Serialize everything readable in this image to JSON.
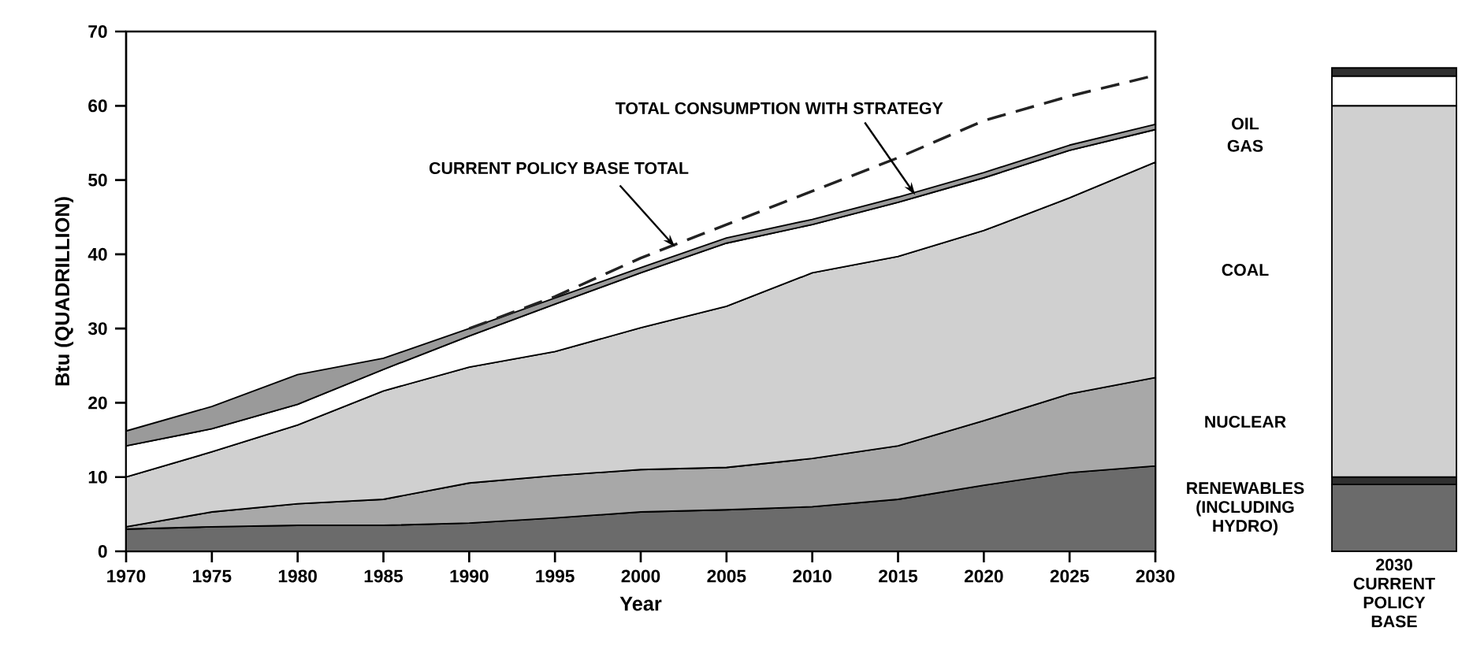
{
  "chart_data": [
    {
      "type": "area",
      "stacked": true,
      "xlabel": "Year",
      "ylabel": "Btu (QUADRILLION)",
      "x": [
        1970,
        1975,
        1980,
        1985,
        1990,
        1995,
        2000,
        2005,
        2010,
        2015,
        2020,
        2025,
        2030
      ],
      "xlim": [
        1970,
        2030
      ],
      "ylim": [
        0,
        70
      ],
      "xticks": [
        1970,
        1975,
        1980,
        1985,
        1990,
        1995,
        2000,
        2005,
        2010,
        2015,
        2020,
        2025,
        2030
      ],
      "yticks": [
        0,
        10,
        20,
        30,
        40,
        50,
        60,
        70
      ],
      "annotations": [
        {
          "text": "CURRENT POLICY BASE TOTAL",
          "x": 2002,
          "y": 41
        },
        {
          "text": "TOTAL CONSUMPTION WITH STRATEGY",
          "x": 2016,
          "y": 48
        }
      ],
      "series": [
        {
          "name": "RENEWABLES (INCLUDING HYDRO)",
          "color": "#6b6b6b",
          "values": [
            3,
            3.3,
            3.5,
            3.5,
            3.8,
            4.5,
            5.3,
            5.6,
            6,
            7,
            8.9,
            10.6,
            11.5
          ]
        },
        {
          "name": "NUCLEAR",
          "color": "#a8a8a8",
          "values": [
            0.3,
            2,
            2.9,
            3.5,
            5.4,
            5.7,
            5.7,
            5.7,
            6.5,
            7.2,
            8.7,
            10.6,
            11.9
          ]
        },
        {
          "name": "COAL",
          "color": "#d0d0d0",
          "values": [
            6.7,
            8.1,
            10.6,
            14.6,
            15.6,
            16.7,
            19.1,
            21.7,
            25,
            25.5,
            25.6,
            26.4,
            29
          ]
        },
        {
          "name": "GAS",
          "color": "#ffffff",
          "values": [
            4.2,
            3.1,
            2.8,
            2.9,
            4.2,
            6.4,
            7.4,
            8.5,
            6.5,
            7.3,
            7.1,
            6.4,
            4.4
          ]
        },
        {
          "name": "OIL",
          "color": "#9a9a9a",
          "values": [
            2,
            3,
            4,
            1.5,
            1,
            0.8,
            0.7,
            0.7,
            0.7,
            0.7,
            0.7,
            0.7,
            0.7
          ]
        },
        {
          "type": "line",
          "line_style": "dashed",
          "color": "#222222",
          "x": [
            1990,
            1995,
            2000,
            2005,
            2010,
            2015,
            2020,
            2025,
            2030
          ],
          "values": [
            30,
            34.3,
            39.5,
            44,
            48.5,
            53,
            58,
            61.3,
            64.1
          ]
        }
      ]
    },
    {
      "type": "bar",
      "stacked": true,
      "categories": [
        "2030 CURRENT POLICY BASE"
      ],
      "ylim": [
        0,
        70
      ],
      "tick_labels": "x",
      "series": [
        {
          "color": "#6b6b6b",
          "values": [
            9
          ]
        },
        {
          "color": "#303030",
          "values": [
            1
          ]
        },
        {
          "color": "#d0d0d0",
          "values": [
            50
          ]
        },
        {
          "color": "#ffffff",
          "values": [
            4
          ]
        },
        {
          "color": "#303030",
          "values": [
            1.1
          ]
        }
      ]
    }
  ]
}
